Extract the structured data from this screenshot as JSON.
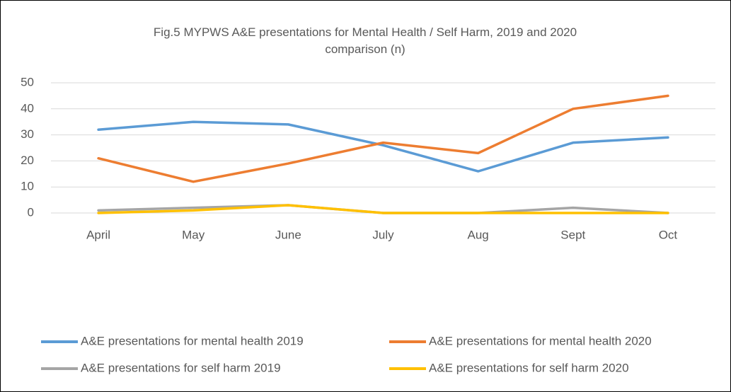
{
  "chart_data": {
    "type": "line",
    "title": "Fig.5 MYPWS A&E presentations for Mental Health / Self Harm, 2019 and 2020 comparison (n)",
    "categories": [
      "April",
      "May",
      "June",
      "July",
      "Aug",
      "Sept",
      "Oct"
    ],
    "series": [
      {
        "name": "A&E presentations for mental health 2019",
        "color": "#5b9bd5",
        "values": [
          32,
          35,
          34,
          26,
          16,
          27,
          29
        ]
      },
      {
        "name": "A&E presentations for mental health 2020",
        "color": "#ed7d31",
        "values": [
          21,
          12,
          19,
          27,
          23,
          40,
          45
        ]
      },
      {
        "name": "A&E presentations for self harm 2019",
        "color": "#a5a5a5",
        "values": [
          1,
          2,
          3,
          0,
          0,
          2,
          0
        ]
      },
      {
        "name": "A&E presentations for self harm 2020",
        "color": "#ffc000",
        "values": [
          0,
          1,
          3,
          0,
          0,
          0,
          0
        ]
      }
    ],
    "ylim": [
      0,
      50
    ],
    "yticks": [
      0,
      10,
      20,
      30,
      40,
      50
    ],
    "grid": true,
    "legend": "bottom"
  }
}
